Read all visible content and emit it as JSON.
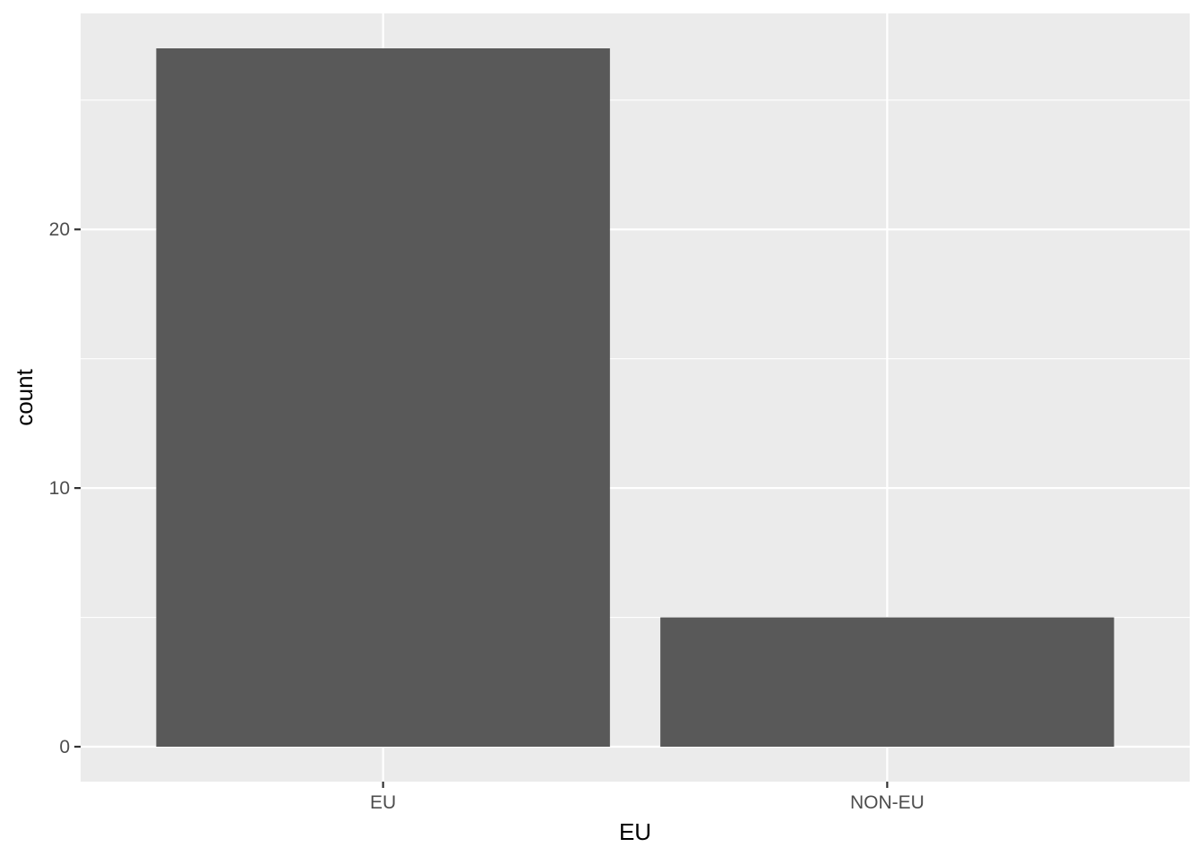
{
  "chart_data": {
    "type": "bar",
    "title": "",
    "xlabel": "EU",
    "ylabel": "count",
    "categories": [
      "EU",
      "NON-EU"
    ],
    "values": [
      27,
      5
    ],
    "ylim": [
      -1.35,
      28.35
    ],
    "yticks": [
      0,
      10,
      20
    ],
    "ytick_labels": [
      "0",
      "10",
      "20"
    ],
    "grid": true,
    "legend": "none",
    "colors": {
      "bar": "#595959",
      "panel": "#ebebeb",
      "grid": "#ffffff",
      "axis_text": "#4d4d4d"
    }
  }
}
